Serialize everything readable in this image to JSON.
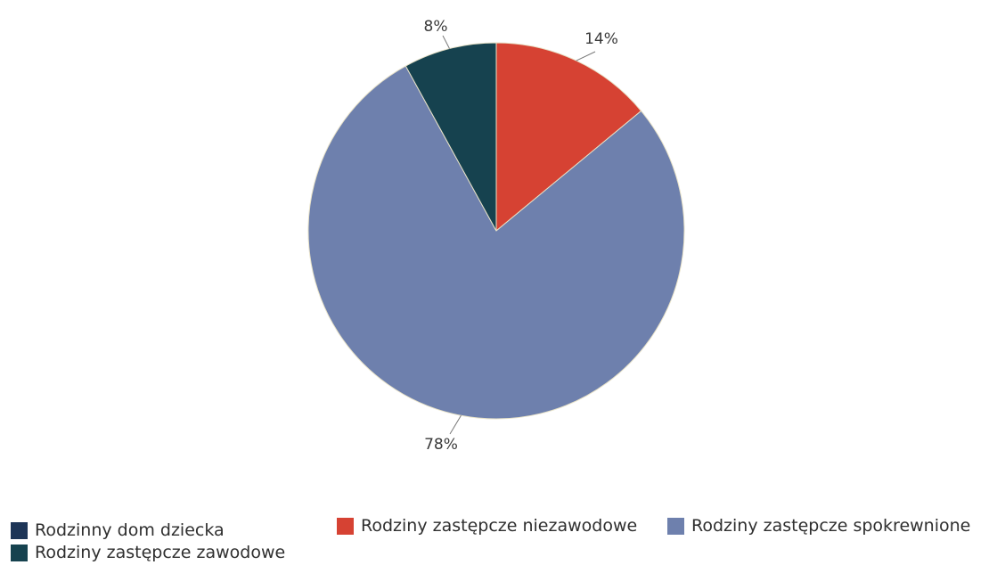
{
  "chart_data": {
    "type": "pie",
    "title": "",
    "categories": [
      "Rodzinny dom dziecka",
      "Rodziny zastępcze zawodowe",
      "Rodziny zastępcze niezawodowe",
      "Rodziny zastępcze spokrewnione"
    ],
    "values": [
      0,
      8,
      14,
      78
    ],
    "data_labels": [
      "",
      "8%",
      "14%",
      "78%"
    ],
    "colors": [
      "#1d3557",
      "#16424f",
      "#d64233",
      "#6e80ad"
    ],
    "legend_position": "bottom"
  },
  "legend": {
    "dom_dziecka": "Rodzinny dom dziecka",
    "zawodowe": "Rodziny zastępcze zawodowe",
    "niezawodowe": "Rodziny zastępcze niezawodowe",
    "spokrewnione": "Rodziny zastępcze spokrewnione"
  }
}
